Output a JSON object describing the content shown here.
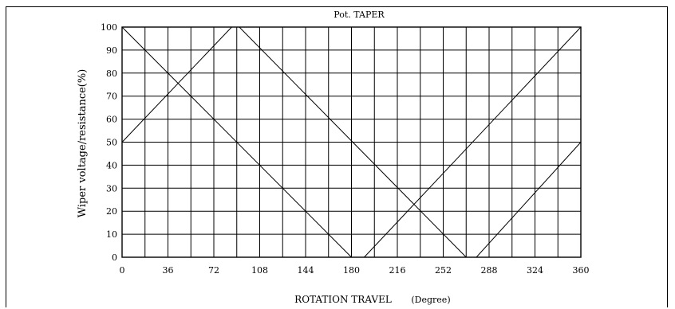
{
  "chart_data": {
    "type": "line",
    "title": "Pot. TAPER",
    "xlabel": "ROTATION TRAVEL",
    "xunit": "(Degree)",
    "ylabel": "Wiper voltage/resistance(%)",
    "xlim": [
      0,
      360
    ],
    "ylim": [
      0,
      100
    ],
    "x_ticks": [
      0,
      36,
      72,
      108,
      144,
      180,
      216,
      252,
      288,
      324,
      360
    ],
    "y_ticks": [
      0,
      10,
      20,
      30,
      40,
      50,
      60,
      70,
      80,
      90,
      100
    ],
    "grid": true,
    "series": [
      {
        "x": [
          0,
          180,
          190,
          360
        ],
        "y": [
          100,
          0,
          0,
          100
        ]
      },
      {
        "x": [
          0,
          86,
          92,
          270,
          278,
          360
        ],
        "y": [
          50,
          100,
          100,
          0,
          0,
          50
        ]
      }
    ]
  }
}
